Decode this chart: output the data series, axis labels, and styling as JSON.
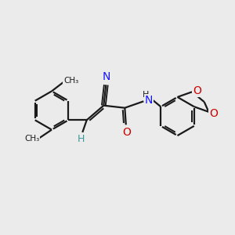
{
  "bg_color": "#ebebeb",
  "bond_color": "#1a1a1a",
  "N_color": "#1414ff",
  "O_color": "#cc0000",
  "H_color": "#3d9999",
  "lw": 1.6,
  "xlim": [
    0,
    10
  ],
  "ylim": [
    0,
    10
  ]
}
